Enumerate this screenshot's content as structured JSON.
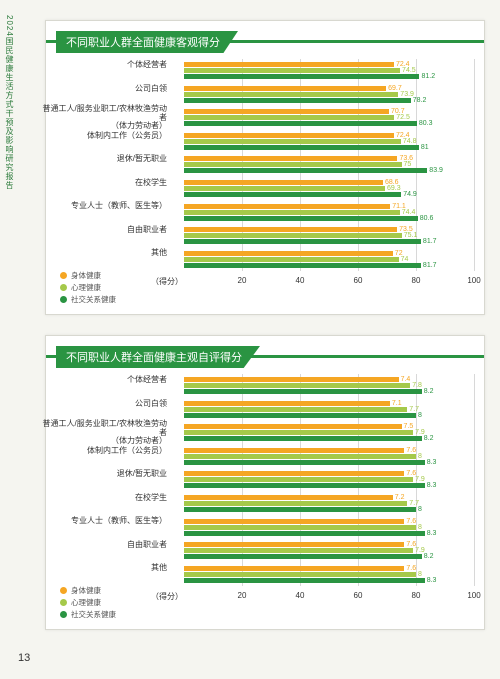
{
  "side_label": "2024国民健康生活方式干预及影响研究报告",
  "page_number": "13",
  "colors": {
    "series": [
      "#f5a623",
      "#a5c94a",
      "#2a9442"
    ],
    "header_bg": "#2a9442",
    "grid": "#d8d8d8"
  },
  "legend_labels": [
    "身体健康",
    "心理健康",
    "社交关系健康"
  ],
  "axis_caption": "（得分）",
  "xaxis": {
    "min": 0,
    "max": 100,
    "ticks": [
      20,
      40,
      60,
      80,
      100
    ]
  },
  "panel1": {
    "title": "不同职业人群全面健康客观得分",
    "categories": [
      {
        "label": "个体经营者",
        "values": [
          72.4,
          74.5,
          81.2
        ]
      },
      {
        "label": "公司白领",
        "values": [
          69.7,
          73.9,
          78.2
        ]
      },
      {
        "label": "普通工人/服务业职工/农林牧渔劳动者\n（体力劳动者）",
        "values": [
          70.7,
          72.5,
          80.3
        ]
      },
      {
        "label": "体制内工作（公务员）",
        "values": [
          72.4,
          74.8,
          81.0
        ]
      },
      {
        "label": "退休/暂无职业",
        "values": [
          73.6,
          75.0,
          83.9
        ]
      },
      {
        "label": "在校学生",
        "values": [
          68.6,
          69.3,
          74.9
        ]
      },
      {
        "label": "专业人士（教师、医生等）",
        "values": [
          71.1,
          74.4,
          80.6
        ]
      },
      {
        "label": "自由职业者",
        "values": [
          73.5,
          75.1,
          81.7
        ]
      },
      {
        "label": "其他",
        "values": [
          72.0,
          74.0,
          81.7
        ]
      }
    ]
  },
  "panel2": {
    "title": "不同职业人群全面健康主观自评得分",
    "categories": [
      {
        "label": "个体经营者",
        "values": [
          7.4,
          7.8,
          8.2
        ]
      },
      {
        "label": "公司白领",
        "values": [
          7.1,
          7.7,
          8.0
        ]
      },
      {
        "label": "普通工人/服务业职工/农林牧渔劳动者\n（体力劳动者）",
        "values": [
          7.5,
          7.9,
          8.2
        ]
      },
      {
        "label": "体制内工作（公务员）",
        "values": [
          7.6,
          8.0,
          8.3
        ]
      },
      {
        "label": "退休/暂无职业",
        "values": [
          7.6,
          7.9,
          8.3
        ]
      },
      {
        "label": "在校学生",
        "values": [
          7.2,
          7.7,
          8.0
        ]
      },
      {
        "label": "专业人士（教师、医生等）",
        "values": [
          7.6,
          8.0,
          8.3
        ]
      },
      {
        "label": "自由职业者",
        "values": [
          7.6,
          7.9,
          8.2
        ]
      },
      {
        "label": "其他",
        "values": [
          7.6,
          8.0,
          8.3
        ]
      }
    ]
  }
}
